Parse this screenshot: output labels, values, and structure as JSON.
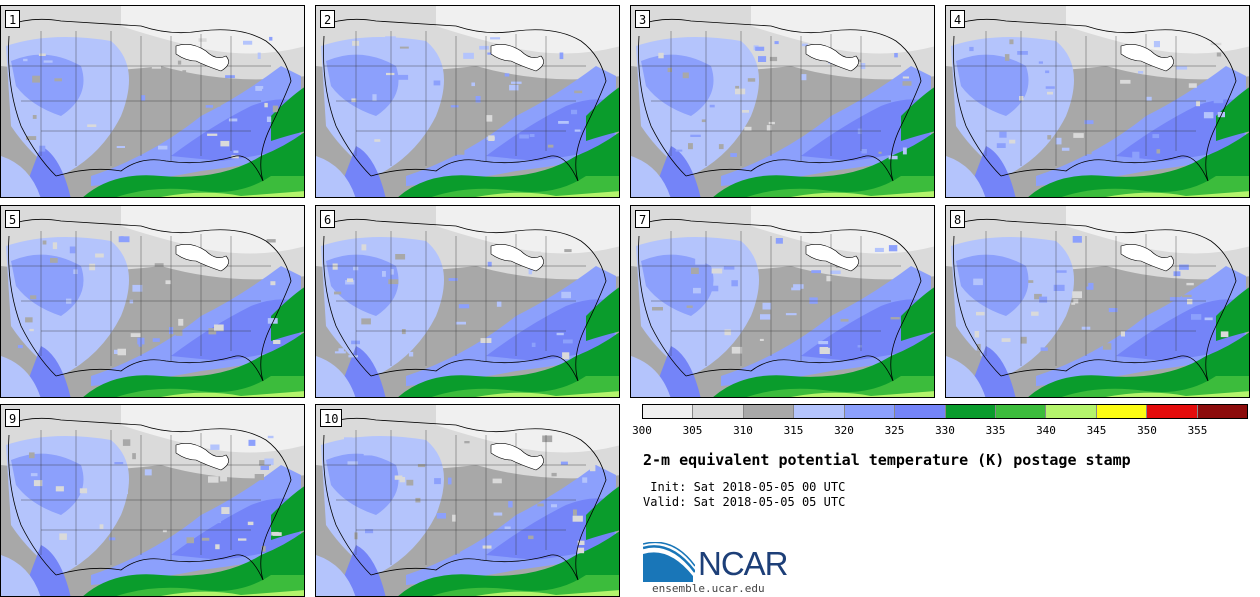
{
  "panels": [
    {
      "label": "1"
    },
    {
      "label": "2"
    },
    {
      "label": "3"
    },
    {
      "label": "4"
    },
    {
      "label": "5"
    },
    {
      "label": "6"
    },
    {
      "label": "7"
    },
    {
      "label": "8"
    },
    {
      "label": "9"
    },
    {
      "label": "10"
    }
  ],
  "colorbar": {
    "colors": [
      "#f0f0f0",
      "#dadada",
      "#a8a8a8",
      "#b4c4fc",
      "#8ca0fc",
      "#7484f8",
      "#0a9c2c",
      "#3cbc3c",
      "#b4f46c",
      "#fcfc14",
      "#e40c0c",
      "#8c0c0c"
    ],
    "ticks": [
      "300",
      "305",
      "310",
      "315",
      "320",
      "325",
      "330",
      "335",
      "340",
      "345",
      "350",
      "355"
    ]
  },
  "title": "2-m equivalent potential temperature (K) postage stamp",
  "init": " Init: Sat 2018-05-05 00 UTC",
  "valid": "Valid: Sat 2018-05-05 05 UTC",
  "logo": {
    "text": "NCAR",
    "url": "ensemble.ucar.edu",
    "color": "#1d3f78"
  }
}
